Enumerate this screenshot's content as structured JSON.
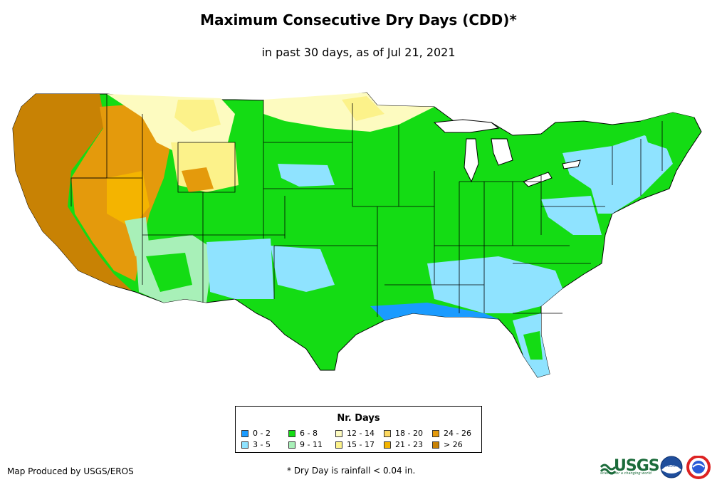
{
  "title": "Maximum Consecutive Dry Days (CDD)*",
  "subtitle": "in past 30 days, as of Jul 21, 2021",
  "legend": {
    "title": "Nr. Days",
    "items": [
      {
        "label": "0 - 2",
        "color": "#1a9bff"
      },
      {
        "label": "3 - 5",
        "color": "#8fe3ff"
      },
      {
        "label": "6 - 8",
        "color": "#14dc14"
      },
      {
        "label": "9 - 11",
        "color": "#a8f0b8"
      },
      {
        "label": "12 - 14",
        "color": "#fdfbc0"
      },
      {
        "label": "15 - 17",
        "color": "#fcf28a"
      },
      {
        "label": "18 - 20",
        "color": "#fcd860"
      },
      {
        "label": "21 - 23",
        "color": "#f4b400"
      },
      {
        "label": "24 - 26",
        "color": "#e49a0c"
      },
      {
        "label": "> 26",
        "color": "#c88204"
      }
    ]
  },
  "credit": "Map Produced by USGS/EROS",
  "footnote": "* Dry Day is rainfall < 0.04 in.",
  "logos": {
    "usgs": "USGS",
    "usgs_tagline": "science for a changing world",
    "noaa": "NOAA",
    "nws_icon": "national-weather-service-icon"
  }
}
